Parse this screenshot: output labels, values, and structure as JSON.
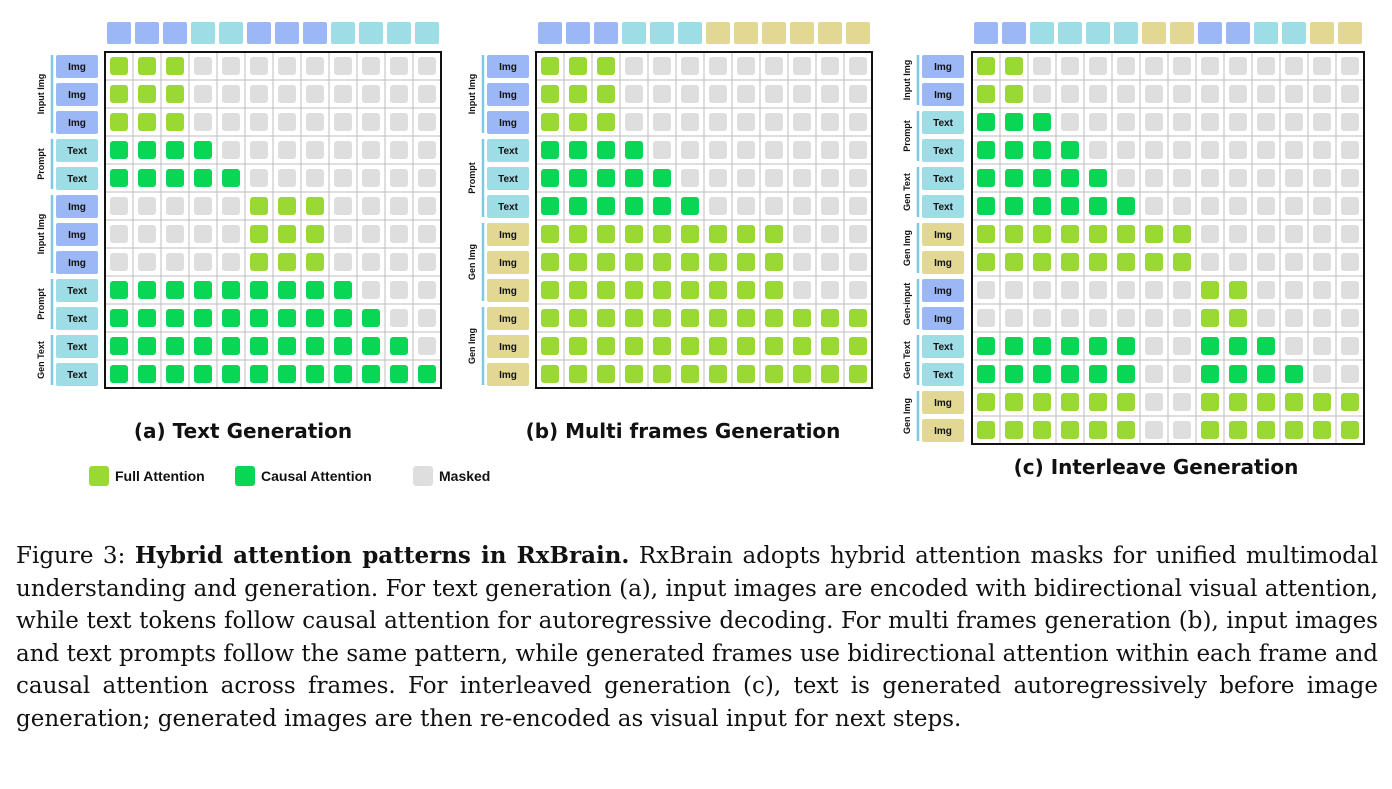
{
  "colors": {
    "img_token": "#9bb7f6",
    "text_token": "#9fdde6",
    "gen_img_token": "#e2d893",
    "full_attention": "#9ad934",
    "causal_attention": "#0ad656",
    "masked": "#dedede"
  },
  "panels": [
    {
      "caption": "(a) Text Generation",
      "top_tokens": [
        "img",
        "img",
        "img",
        "text",
        "text",
        "img",
        "img",
        "img",
        "text",
        "text",
        "text",
        "text"
      ],
      "rows": [
        {
          "label": "Img",
          "type": "img"
        },
        {
          "label": "Img",
          "type": "img"
        },
        {
          "label": "Img",
          "type": "img"
        },
        {
          "label": "Text",
          "type": "text"
        },
        {
          "label": "Text",
          "type": "text"
        },
        {
          "label": "Img",
          "type": "img"
        },
        {
          "label": "Img",
          "type": "img"
        },
        {
          "label": "Img",
          "type": "img"
        },
        {
          "label": "Text",
          "type": "text"
        },
        {
          "label": "Text",
          "type": "text"
        },
        {
          "label": "Text",
          "type": "text"
        },
        {
          "label": "Text",
          "type": "text"
        }
      ],
      "groups": [
        {
          "label": "Input Img",
          "start": 0,
          "end": 2
        },
        {
          "label": "Prompt",
          "start": 3,
          "end": 4
        },
        {
          "label": "Input Img",
          "start": 5,
          "end": 7
        },
        {
          "label": "Prompt",
          "start": 8,
          "end": 9
        },
        {
          "label": "Gen Text",
          "start": 10,
          "end": 11
        }
      ],
      "matrix": [
        "FFFMMMMMMMMM",
        "FFFMMMMMMMMM",
        "FFFMMMMMMMMM",
        "CCCCMMMMMMMM",
        "CCCCCMMMMMMM",
        "MMMMMFFFMMMM",
        "MMMMMFFFMMMM",
        "MMMMMFFFMMMM",
        "CCCCCCCCCMMM",
        "CCCCCCCCCCMM",
        "CCCCCCCCCCCM",
        "CCCCCCCCCCCC"
      ]
    },
    {
      "caption": "(b) Multi frames Generation",
      "top_tokens": [
        "img",
        "img",
        "img",
        "text",
        "text",
        "text",
        "gen",
        "gen",
        "gen",
        "gen",
        "gen",
        "gen"
      ],
      "rows": [
        {
          "label": "Img",
          "type": "img"
        },
        {
          "label": "Img",
          "type": "img"
        },
        {
          "label": "Img",
          "type": "img"
        },
        {
          "label": "Text",
          "type": "text"
        },
        {
          "label": "Text",
          "type": "text"
        },
        {
          "label": "Text",
          "type": "text"
        },
        {
          "label": "Img",
          "type": "gen"
        },
        {
          "label": "Img",
          "type": "gen"
        },
        {
          "label": "Img",
          "type": "gen"
        },
        {
          "label": "Img",
          "type": "gen"
        },
        {
          "label": "Img",
          "type": "gen"
        },
        {
          "label": "Img",
          "type": "gen"
        }
      ],
      "groups": [
        {
          "label": "Input Img",
          "start": 0,
          "end": 2
        },
        {
          "label": "Prompt",
          "start": 3,
          "end": 5
        },
        {
          "label": "Gen Img",
          "start": 6,
          "end": 8
        },
        {
          "label": "Gen Img",
          "start": 9,
          "end": 11
        }
      ],
      "matrix": [
        "FFFMMMMMMMMM",
        "FFFMMMMMMMMM",
        "FFFMMMMMMMMM",
        "CCCCMMMMMMMM",
        "CCCCCMMMMMMM",
        "CCCCCCMMMMMM",
        "FFFFFFFFFMMM",
        "FFFFFFFFFMMM",
        "FFFFFFFFFMMM",
        "FFFFFFFFFFFF",
        "FFFFFFFFFFFF",
        "FFFFFFFFFFFF"
      ]
    },
    {
      "caption": "(c) Interleave Generation",
      "top_tokens": [
        "img",
        "img",
        "text",
        "text",
        "text",
        "text",
        "gen",
        "gen",
        "img",
        "img",
        "text",
        "text",
        "gen",
        "gen"
      ],
      "rows": [
        {
          "label": "Img",
          "type": "img"
        },
        {
          "label": "Img",
          "type": "img"
        },
        {
          "label": "Text",
          "type": "text"
        },
        {
          "label": "Text",
          "type": "text"
        },
        {
          "label": "Text",
          "type": "text"
        },
        {
          "label": "Text",
          "type": "text"
        },
        {
          "label": "Img",
          "type": "gen"
        },
        {
          "label": "Img",
          "type": "gen"
        },
        {
          "label": "Img",
          "type": "img"
        },
        {
          "label": "Img",
          "type": "img"
        },
        {
          "label": "Text",
          "type": "text"
        },
        {
          "label": "Text",
          "type": "text"
        },
        {
          "label": "Img",
          "type": "gen"
        },
        {
          "label": "Img",
          "type": "gen"
        }
      ],
      "groups": [
        {
          "label": "Input Img",
          "start": 0,
          "end": 1
        },
        {
          "label": "Prompt",
          "start": 2,
          "end": 3
        },
        {
          "label": "Gen Text",
          "start": 4,
          "end": 5
        },
        {
          "label": "Gen Img",
          "start": 6,
          "end": 7
        },
        {
          "label": "Gen-input",
          "start": 8,
          "end": 9
        },
        {
          "label": "Gen Text",
          "start": 10,
          "end": 11
        },
        {
          "label": "Gen Img",
          "start": 12,
          "end": 13
        }
      ],
      "matrix": [
        "FFMMMMMMMMMMMM",
        "FFMMMMMMMMMMMM",
        "CCCMMMMMMMMMMM",
        "CCCCMMMMMMMMMM",
        "CCCCCMMMMMMMMM",
        "CCCCCCMMMMMMMM",
        "FFFFFFFFMMMMMM",
        "FFFFFFFFMMMMMM",
        "MMMMMMMMFFMMMM",
        "MMMMMMMMFFMMMM",
        "CCCCCCMMCCCMMM",
        "CCCCCCMMCCCCMM",
        "FFFFFFMMFFFFFF",
        "FFFFFFMMFFFFFF"
      ]
    }
  ],
  "legend": [
    {
      "label": "Full Attention",
      "kind": "F"
    },
    {
      "label": "Causal Attention",
      "kind": "C"
    },
    {
      "label": "Masked",
      "kind": "M"
    }
  ],
  "caption": {
    "figure_label": "Figure 3:",
    "bold_title": "Hybrid attention patterns in RxBrain.",
    "body": "RxBrain adopts hybrid attention masks for unified multimodal understanding and generation. For text generation (a), input images are encoded with bidirectional visual attention, while text tokens follow causal attention for autoregressive decoding. For multi frames generation (b), input images and text prompts follow the same pattern, while generated frames use bidirectional attention within each frame and causal attention across frames. For interleaved generation (c), text is generated autoregressively before image generation; generated images are then re-encoded as visual input for next steps."
  }
}
